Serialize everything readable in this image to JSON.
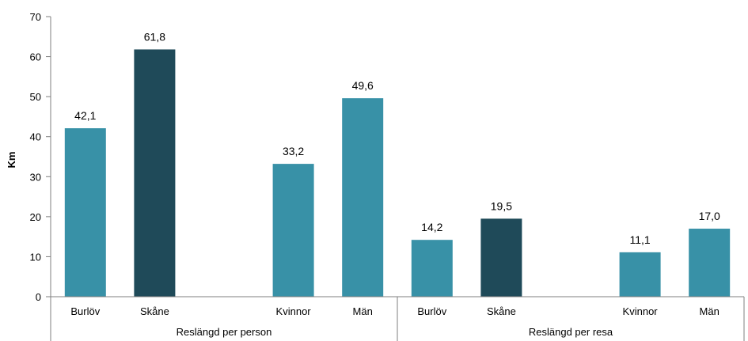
{
  "chart_data": {
    "type": "bar",
    "ylabel": "Km",
    "ylim": [
      0,
      70
    ],
    "yticks": [
      "0",
      "10",
      "20",
      "30",
      "40",
      "50",
      "60",
      "70"
    ],
    "grid": false,
    "legend": "none",
    "groups": [
      {
        "label": "Reslängd per person",
        "bars": [
          {
            "category": "Burlöv",
            "value": 42.1,
            "label": "42,1",
            "color": "#3891A7"
          },
          {
            "category": "Skåne",
            "value": 61.8,
            "label": "61,8",
            "color": "#1F4A59"
          },
          {
            "category": "Kvinnor",
            "value": 33.2,
            "label": "33,2",
            "color": "#3891A7"
          },
          {
            "category": "Män",
            "value": 49.6,
            "label": "49,6",
            "color": "#3891A7"
          }
        ]
      },
      {
        "label": "Reslängd per resa",
        "bars": [
          {
            "category": "Burlöv",
            "value": 14.2,
            "label": "14,2",
            "color": "#3891A7"
          },
          {
            "category": "Skåne",
            "value": 19.5,
            "label": "19,5",
            "color": "#1F4A59"
          },
          {
            "category": "Kvinnor",
            "value": 11.1,
            "label": "11,1",
            "color": "#3891A7"
          },
          {
            "category": "Män",
            "value": 17.0,
            "label": "17,0",
            "color": "#3891A7"
          }
        ]
      }
    ]
  }
}
